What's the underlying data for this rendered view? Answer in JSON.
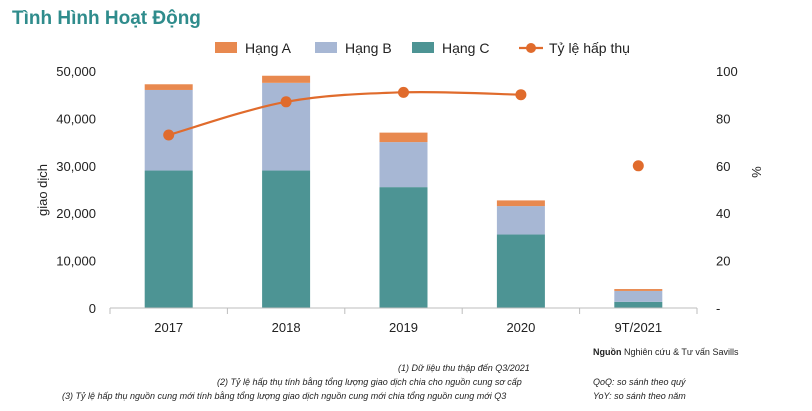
{
  "title": "Tình Hình Hoạt Động",
  "chart_data": {
    "type": "bar",
    "stacked": true,
    "categories": [
      "2017",
      "2018",
      "2019",
      "2020",
      "9T/2021"
    ],
    "series": [
      {
        "name": "Hạng C",
        "color": "#4d9494",
        "values": [
          29000,
          29000,
          25500,
          15500,
          1300
        ]
      },
      {
        "name": "Hạng B",
        "color": "#a7b7d4",
        "values": [
          17000,
          18500,
          9500,
          6000,
          2300
        ]
      },
      {
        "name": "Hạng A",
        "color": "#e8894f",
        "values": [
          1200,
          1500,
          2000,
          1200,
          400
        ]
      }
    ],
    "line_series": {
      "name": "Tỷ lệ hấp thụ",
      "color": "#e06b2c",
      "values": [
        73,
        87,
        91,
        90,
        60
      ],
      "connected": [
        true,
        true,
        true,
        true,
        false
      ]
    },
    "legend_order": [
      "Hạng A",
      "Hạng B",
      "Hạng C",
      "Tỷ lệ hấp thụ"
    ],
    "legend_position": "top",
    "ylabel": "giao dịch",
    "ylabel_right": "%",
    "ylim": [
      0,
      50000
    ],
    "yticks": [
      "0",
      "10,000",
      "20,000",
      "30,000",
      "40,000",
      "50,000"
    ],
    "y2lim": [
      0,
      100
    ],
    "y2ticks": [
      "-",
      "20",
      "40",
      "60",
      "80",
      "100"
    ],
    "grid": false
  },
  "notes": {
    "n1": "(1)  Dữ liệu thu thập đến  Q3/2021",
    "n2": "(2)  Tỷ lệ hấp thụ tính bằng tổng lượng giao dịch chia cho nguồn cung sơ cấp",
    "n3": "(3)  Tỷ lệ hấp thụ nguồn cung mới tính bằng tổng lượng giao dịch nguồn cung mới chia tổng nguồn cung mới Q3",
    "source_label": "Nguồn",
    "source_text": "Nghiên cứu & Tư vấn Savills",
    "qoq": "QoQ: so sánh theo quý",
    "yoy": "YoY: so sánh theo năm"
  }
}
